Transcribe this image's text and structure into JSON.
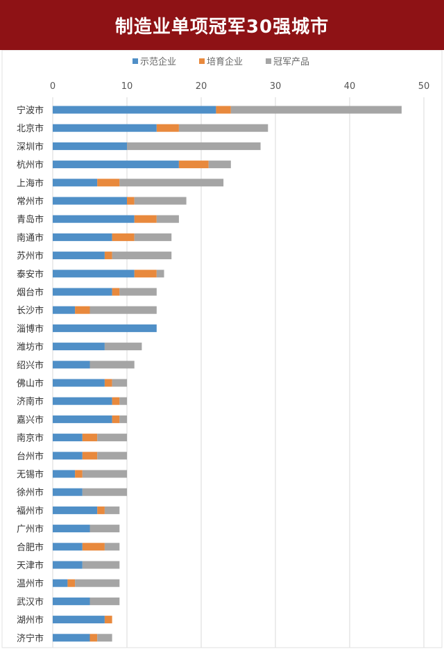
{
  "title": "制造业单项冠军30强城市",
  "colors": {
    "banner": "#8e1215",
    "series": [
      "#4f8fc7",
      "#e8893d",
      "#a5a5a5"
    ],
    "grid": "#d9d9d9"
  },
  "chart_data": {
    "type": "bar",
    "orientation": "horizontal",
    "stacked": true,
    "title": "制造业单项冠军30强城市",
    "xlabel": "",
    "ylabel": "",
    "xlim": [
      0,
      50
    ],
    "xticks": [
      0,
      10,
      20,
      30,
      40,
      50
    ],
    "grid": true,
    "legend": "top",
    "categories": [
      "宁波市",
      "北京市",
      "深圳市",
      "杭州市",
      "上海市",
      "常州市",
      "青岛市",
      "南通市",
      "苏州市",
      "泰安市",
      "烟台市",
      "长沙市",
      "淄博市",
      "潍坊市",
      "绍兴市",
      "佛山市",
      "济南市",
      "嘉兴市",
      "南京市",
      "台州市",
      "无锡市",
      "徐州市",
      "福州市",
      "广州市",
      "合肥市",
      "天津市",
      "温州市",
      "武汉市",
      "湖州市",
      "济宁市"
    ],
    "series": [
      {
        "name": "示范企业",
        "values": [
          22,
          14,
          10,
          17,
          6,
          10,
          11,
          8,
          7,
          11,
          8,
          3,
          14,
          7,
          5,
          7,
          8,
          8,
          4,
          4,
          3,
          4,
          6,
          5,
          4,
          4,
          2,
          5,
          7,
          5
        ]
      },
      {
        "name": "培育企业",
        "values": [
          2,
          3,
          0,
          4,
          3,
          1,
          3,
          3,
          1,
          3,
          1,
          2,
          0,
          0,
          0,
          1,
          1,
          1,
          2,
          2,
          1,
          0,
          1,
          0,
          3,
          0,
          1,
          0,
          1,
          1
        ]
      },
      {
        "name": "冠军产品",
        "values": [
          23,
          12,
          18,
          3,
          14,
          7,
          3,
          5,
          8,
          1,
          5,
          9,
          0,
          5,
          6,
          2,
          1,
          1,
          4,
          4,
          6,
          6,
          2,
          4,
          2,
          5,
          6,
          4,
          0,
          2
        ]
      }
    ]
  }
}
